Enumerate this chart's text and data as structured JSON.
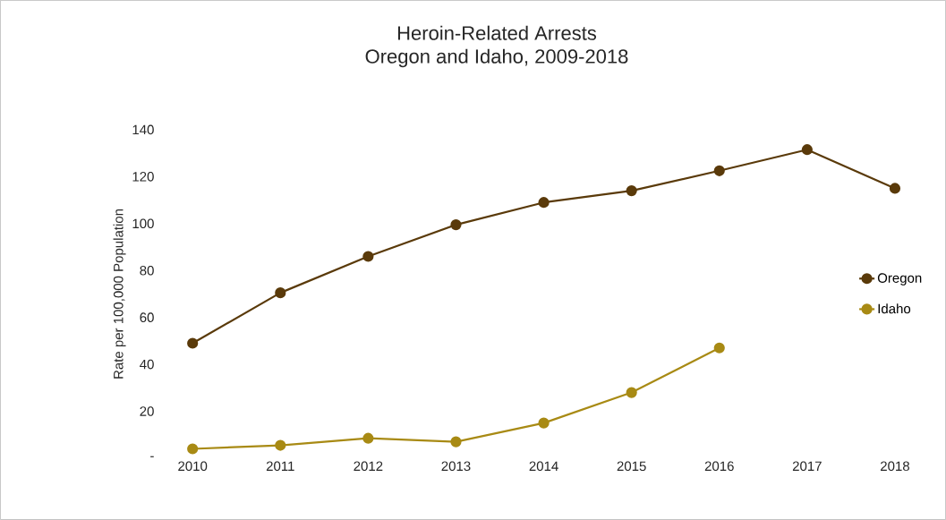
{
  "chart_data": {
    "type": "line",
    "title": "Heroin-Related Arrests",
    "subtitle": "Oregon and Idaho, 2009-2018",
    "ylabel": "Rate per 100,000 Population",
    "categories": [
      "2010",
      "2011",
      "2012",
      "2013",
      "2014",
      "2015",
      "2016",
      "2017",
      "2018"
    ],
    "series": [
      {
        "name": "Oregon",
        "color": "#5a3a0a",
        "values": [
          49,
          70.5,
          86,
          99.5,
          109,
          114,
          122.5,
          131.5,
          115
        ]
      },
      {
        "name": "Idaho",
        "color": "#a88a14",
        "values": [
          4,
          5.5,
          8.5,
          7,
          15,
          28,
          47,
          null,
          null
        ]
      }
    ],
    "ylim": [
      0,
      140
    ],
    "yticks": [
      {
        "value": 0,
        "label": "-"
      },
      20,
      40,
      60,
      80,
      100,
      120,
      140
    ],
    "grid": false,
    "legend": "right",
    "marker": "circle",
    "line_style": "solid"
  }
}
